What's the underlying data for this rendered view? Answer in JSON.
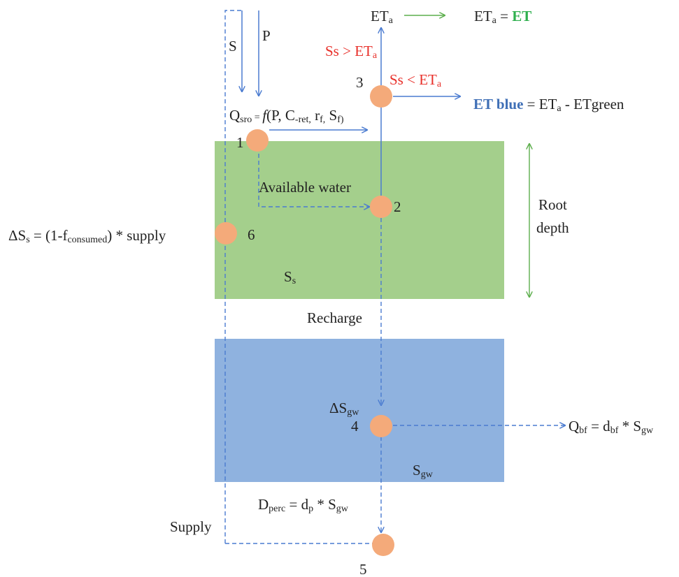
{
  "colors": {
    "root_zone": "#a4cf8c",
    "groundwater": "#8fb2df",
    "node": "#f4aa7a",
    "arrow": "#4a7bd0",
    "green_arrow": "#5cae4c",
    "red_text": "#e8302a",
    "green_text": "#2fb04e",
    "blue_text": "#3f6fb6"
  },
  "labels": {
    "S": "S",
    "P": "P",
    "eta_top": {
      "main": "ET",
      "sub": "a"
    },
    "eta_eq": {
      "lhs": "ET",
      "lhs_sub": "a",
      "eq": " = ",
      "rhs": "ET"
    },
    "ss_gt": {
      "pre": "Ss > ET",
      "sub": "a"
    },
    "ss_lt": {
      "pre": "Ss < ET",
      "sub": "a"
    },
    "et_blue": {
      "bold": "ET blue",
      "mid": " = ET",
      "sub": "a",
      "post": " - ETgreen"
    },
    "qsro": {
      "q": "Q",
      "qsub": "sro",
      "eq": " = ",
      "f": "f",
      "open": "(P, C",
      "csub": "-ret,",
      "r": " r",
      "rsub": "f,",
      "s": " S",
      "ssub": "f)"
    },
    "available_water": "Available water",
    "root_depth_1": "Root",
    "root_depth_2": "depth",
    "delta_ss": {
      "pre": "ΔS",
      "sub1": "s",
      "mid": " = (1-f",
      "sub2": "consumed",
      "post": ") * supply"
    },
    "ss_store": {
      "main": "S",
      "sub": "s"
    },
    "recharge": "Recharge",
    "delta_sgw": {
      "main": "ΔS",
      "sub": "gw"
    },
    "sgw_store": {
      "main": "S",
      "sub": "gw"
    },
    "qbf": {
      "q": "Q",
      "qsub": "bf",
      "eq": " = d",
      "dsub": "bf",
      "post": " * S",
      "ssub": "gw"
    },
    "dperc": {
      "d": "D",
      "dsub": "perc",
      "eq": " = d",
      "psub": "p",
      "post": " * S",
      "ssub": "gw"
    },
    "supply": "Supply"
  },
  "nodes": [
    "1",
    "2",
    "3",
    "4",
    "5",
    "6"
  ]
}
